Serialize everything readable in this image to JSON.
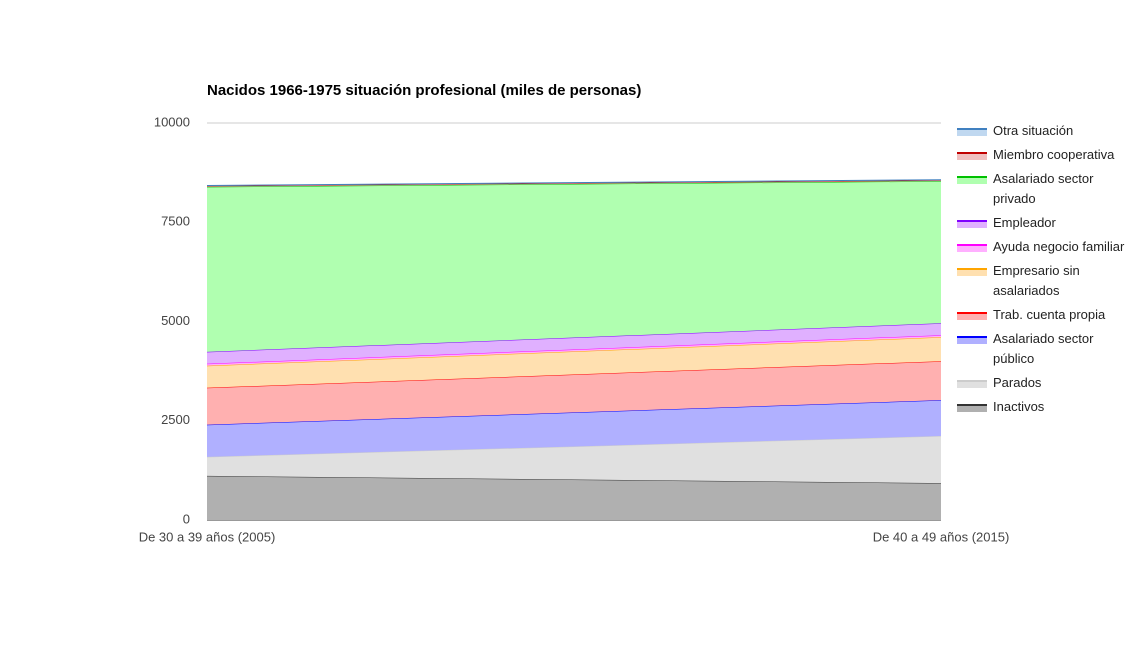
{
  "chart_data": {
    "type": "stacked-area",
    "title": "Nacidos 1966-1975 situación profesional (miles de personas)",
    "categories": [
      "De 30 a 39 años (2005)",
      "De 40 a 49 años (2015)"
    ],
    "ylim": [
      0,
      10000
    ],
    "yticks": [
      0,
      2500,
      5000,
      7500,
      10000
    ],
    "grid": true,
    "legend": "right",
    "series": [
      {
        "name": "Inactivos",
        "color": "#333333",
        "fill": "#b0b0b0",
        "values": [
          1110,
          930
        ]
      },
      {
        "name": "Parados",
        "color": "#cccccc",
        "fill": "#e0e0e0",
        "values": [
          480,
          1185
        ]
      },
      {
        "name": "Asalariado sector público",
        "color": "#0000ff",
        "fill": "#b0b0ff",
        "values": [
          810,
          905
        ]
      },
      {
        "name": "Trab. cuenta propia",
        "color": "#ff0000",
        "fill": "#ffb0b0",
        "values": [
          930,
          980
        ]
      },
      {
        "name": "Empresario sin asalariados",
        "color": "#ffa500",
        "fill": "#ffe0b0",
        "values": [
          555,
          605
        ]
      },
      {
        "name": "Ayuda negocio familiar",
        "color": "#ff00ff",
        "fill": "#ffb0ff",
        "values": [
          50,
          50
        ]
      },
      {
        "name": "Empleador",
        "color": "#8000ff",
        "fill": "#e0b0ff",
        "values": [
          300,
          300
        ]
      },
      {
        "name": "Asalariado sector privado",
        "color": "#00c000",
        "fill": "#b0ffb0",
        "values": [
          4155,
          3580
        ]
      },
      {
        "name": "Miembro cooperativa",
        "color": "#c00000",
        "fill": "#f0c0c0",
        "values": [
          25,
          25
        ]
      },
      {
        "name": "Otra situación",
        "color": "#4080c0",
        "fill": "#c0d8f0",
        "values": [
          10,
          10
        ]
      }
    ]
  }
}
